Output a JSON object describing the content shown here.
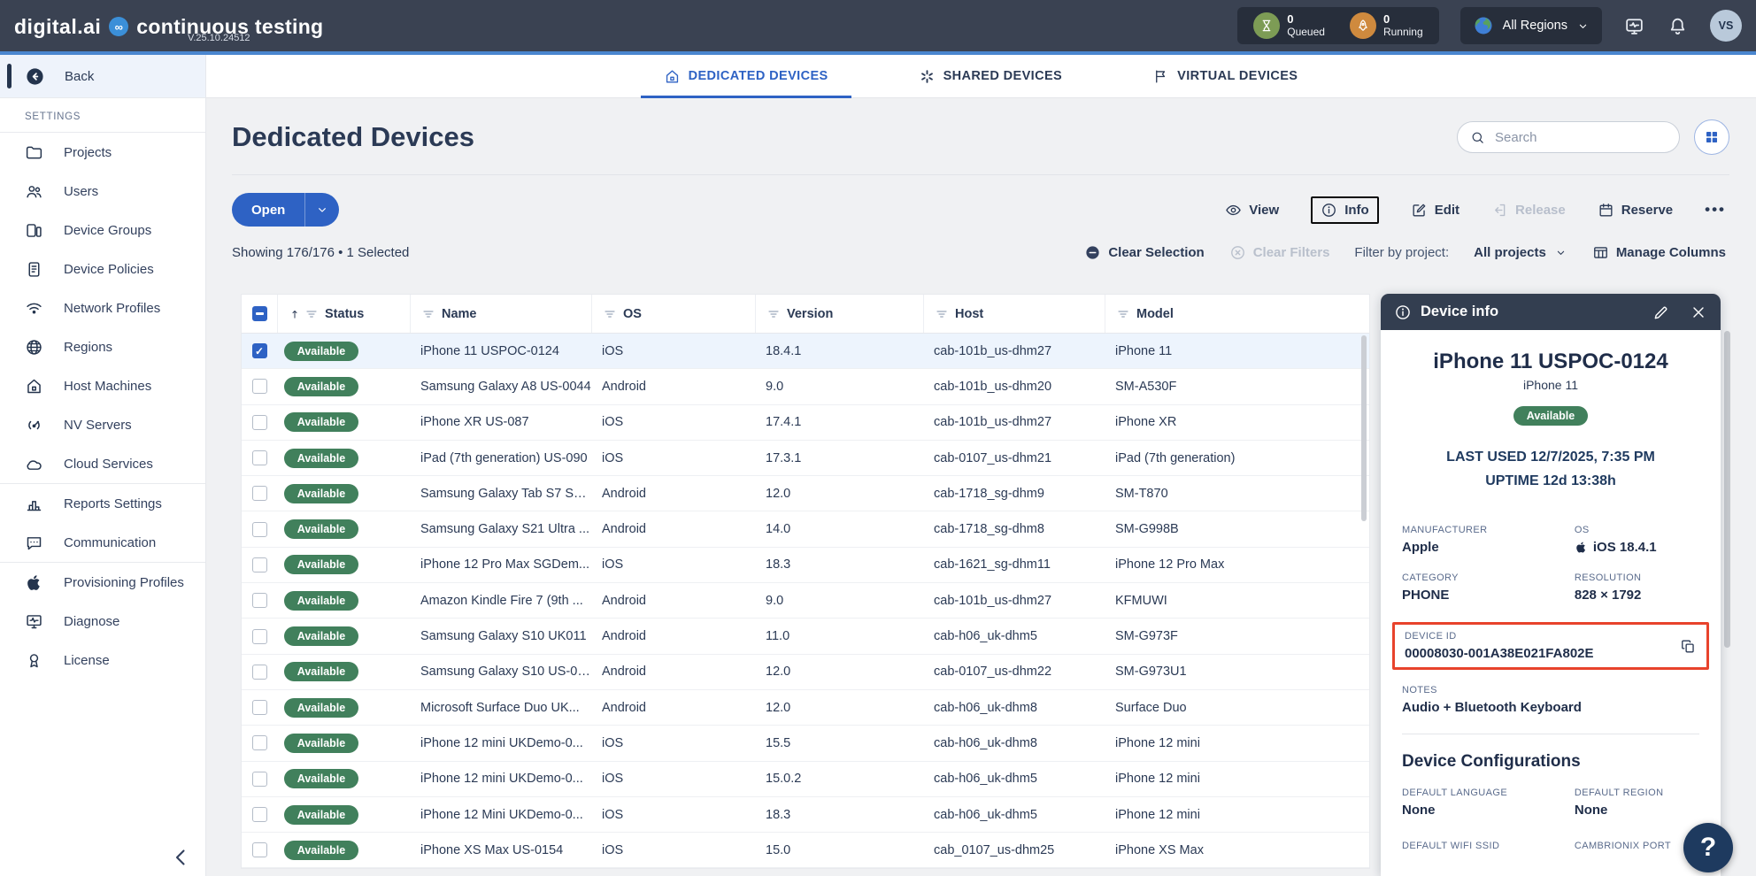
{
  "header": {
    "logo_digital": "digital.ai",
    "logo_co": "∞",
    "logo_product": "continuous testing",
    "version": "V.25.10.24512",
    "queued": {
      "count": "0",
      "label": "Queued"
    },
    "running": {
      "count": "0",
      "label": "Running"
    },
    "region_selector": "All Regions",
    "avatar": "VS"
  },
  "sidebar": {
    "back_label": "Back",
    "section_label": "SETTINGS",
    "items": [
      {
        "label": "Projects",
        "icon": "folder",
        "name": "sidebar-item-projects"
      },
      {
        "label": "Users",
        "icon": "users",
        "name": "sidebar-item-users"
      },
      {
        "label": "Device Groups",
        "icon": "device-groups",
        "name": "sidebar-item-device-groups"
      },
      {
        "label": "Device Policies",
        "icon": "device-policies",
        "name": "sidebar-item-device-policies"
      },
      {
        "label": "Network Profiles",
        "icon": "wifi",
        "name": "sidebar-item-network-profiles"
      },
      {
        "label": "Regions",
        "icon": "globe",
        "name": "sidebar-item-regions"
      },
      {
        "label": "Host Machines",
        "icon": "home",
        "name": "sidebar-item-host-machines"
      },
      {
        "label": "NV Servers",
        "icon": "nv",
        "name": "sidebar-item-nv-servers"
      },
      {
        "label": "Cloud Services",
        "icon": "cloud",
        "name": "sidebar-item-cloud-services",
        "group_end": true
      },
      {
        "label": "Reports Settings",
        "icon": "reports",
        "name": "sidebar-item-reports-settings"
      },
      {
        "label": "Communication",
        "icon": "chat",
        "name": "sidebar-item-communication",
        "group_end": true
      },
      {
        "label": "Provisioning Profiles",
        "icon": "apple",
        "name": "sidebar-item-provisioning-profiles"
      },
      {
        "label": "Diagnose",
        "icon": "diagnose",
        "name": "sidebar-item-diagnose"
      },
      {
        "label": "License",
        "icon": "license",
        "name": "sidebar-item-license"
      }
    ]
  },
  "tabs": [
    {
      "label": "DEDICATED DEVICES",
      "icon": "home",
      "active": true,
      "name": "tab-dedicated-devices"
    },
    {
      "label": "SHARED DEVICES",
      "icon": "shared",
      "name": "tab-shared-devices"
    },
    {
      "label": "VIRTUAL DEVICES",
      "icon": "flag",
      "name": "tab-virtual-devices"
    }
  ],
  "page": {
    "title": "Dedicated Devices",
    "search_placeholder": "Search"
  },
  "toolbar": {
    "open_label": "Open",
    "more_label": "•••",
    "actions": [
      {
        "label": "View",
        "icon": "eye",
        "name": "view-button"
      },
      {
        "label": "Info",
        "icon": "info",
        "focused": true,
        "name": "info-button"
      },
      {
        "label": "Edit",
        "icon": "edit",
        "name": "edit-button"
      },
      {
        "label": "Release",
        "icon": "release",
        "disabled": true,
        "name": "release-button"
      },
      {
        "label": "Reserve",
        "icon": "reserve",
        "name": "reserve-button"
      }
    ]
  },
  "filters": {
    "showing": "Showing 176/176 • 1 Selected",
    "clear_selection": "Clear Selection",
    "clear_filters": "Clear Filters",
    "filter_by_project_label": "Filter by project:",
    "project_value": "All projects",
    "manage_columns": "Manage Columns"
  },
  "table": {
    "columns": [
      {
        "label": "Status",
        "sorted": true
      },
      {
        "label": "Name"
      },
      {
        "label": "OS"
      },
      {
        "label": "Version"
      },
      {
        "label": "Host"
      },
      {
        "label": "Model"
      }
    ],
    "rows": [
      {
        "status": "Available",
        "name": "iPhone 11 USPOC-0124",
        "os": "iOS",
        "version": "18.4.1",
        "host": "cab-101b_us-dhm27",
        "model": "iPhone 11",
        "selected": true
      },
      {
        "status": "Available",
        "name": "Samsung Galaxy A8 US-0044",
        "os": "Android",
        "version": "9.0",
        "host": "cab-101b_us-dhm20",
        "model": "SM-A530F"
      },
      {
        "status": "Available",
        "name": "iPhone XR US-087",
        "os": "iOS",
        "version": "17.4.1",
        "host": "cab-101b_us-dhm27",
        "model": "iPhone XR"
      },
      {
        "status": "Available",
        "name": "iPad (7th generation) US-090",
        "os": "iOS",
        "version": "17.3.1",
        "host": "cab-0107_us-dhm21",
        "model": "iPad (7th generation)"
      },
      {
        "status": "Available",
        "name": "Samsung Galaxy Tab S7 SG...",
        "os": "Android",
        "version": "12.0",
        "host": "cab-1718_sg-dhm9",
        "model": "SM-T870"
      },
      {
        "status": "Available",
        "name": "Samsung Galaxy S21 Ultra ...",
        "os": "Android",
        "version": "14.0",
        "host": "cab-1718_sg-dhm8",
        "model": "SM-G998B"
      },
      {
        "status": "Available",
        "name": "iPhone 12 Pro Max SGDem...",
        "os": "iOS",
        "version": "18.3",
        "host": "cab-1621_sg-dhm11",
        "model": "iPhone 12 Pro Max"
      },
      {
        "status": "Available",
        "name": "Amazon Kindle Fire 7 (9th ...",
        "os": "Android",
        "version": "9.0",
        "host": "cab-101b_us-dhm27",
        "model": "KFMUWI"
      },
      {
        "status": "Available",
        "name": "Samsung Galaxy S10 UK011",
        "os": "Android",
        "version": "11.0",
        "host": "cab-h06_uk-dhm5",
        "model": "SM-G973F"
      },
      {
        "status": "Available",
        "name": "Samsung Galaxy S10 US-01...",
        "os": "Android",
        "version": "12.0",
        "host": "cab-0107_us-dhm22",
        "model": "SM-G973U1"
      },
      {
        "status": "Available",
        "name": "Microsoft Surface Duo UK...",
        "os": "Android",
        "version": "12.0",
        "host": "cab-h06_uk-dhm8",
        "model": "Surface Duo"
      },
      {
        "status": "Available",
        "name": "iPhone 12 mini UKDemo-0...",
        "os": "iOS",
        "version": "15.5",
        "host": "cab-h06_uk-dhm8",
        "model": "iPhone 12 mini"
      },
      {
        "status": "Available",
        "name": "iPhone 12 mini UKDemo-0...",
        "os": "iOS",
        "version": "15.0.2",
        "host": "cab-h06_uk-dhm5",
        "model": "iPhone 12 mini"
      },
      {
        "status": "Available",
        "name": "iPhone 12 Mini UKDemo-0...",
        "os": "iOS",
        "version": "18.3",
        "host": "cab-h06_uk-dhm5",
        "model": "iPhone 12 mini"
      },
      {
        "status": "Available",
        "name": "iPhone XS Max US-0154",
        "os": "iOS",
        "version": "15.0",
        "host": "cab_0107_us-dhm25",
        "model": "iPhone XS Max"
      }
    ]
  },
  "device_info": {
    "panel_title": "Device info",
    "name": "iPhone 11 USPOC-0124",
    "model": "iPhone 11",
    "status": "Available",
    "last_used": "LAST USED 12/7/2025, 7:35 PM",
    "uptime": "UPTIME 12d 13:38h",
    "fields": [
      {
        "label": "MANUFACTURER",
        "value": "Apple"
      },
      {
        "label": "OS",
        "value": "iOS 18.4.1",
        "icon": "apple"
      },
      {
        "label": "CATEGORY",
        "value": "PHONE"
      },
      {
        "label": "RESOLUTION",
        "value": "828 × 1792"
      }
    ],
    "device_id_label": "DEVICE ID",
    "device_id": "00008030-001A38E021FA802E",
    "notes_label": "NOTES",
    "notes": "Audio + Bluetooth Keyboard",
    "configurations_title": "Device Configurations",
    "config_fields": [
      {
        "label": "DEFAULT LANGUAGE",
        "value": "None"
      },
      {
        "label": "DEFAULT REGION",
        "value": "None"
      },
      {
        "label": "DEFAULT WIFI SSID",
        "value": ""
      },
      {
        "label": "CAMBRIONIX PORT",
        "value": ""
      }
    ]
  },
  "help_label": "?",
  "colors": {
    "accent_blue": "#2e62c4",
    "topbar": "#3a4252",
    "badge_green": "#41805c",
    "highlight_red": "#e8432c",
    "panel_header": "#333e50",
    "queued_green": "#7d9c55",
    "running_orange": "#cf8a3e"
  }
}
